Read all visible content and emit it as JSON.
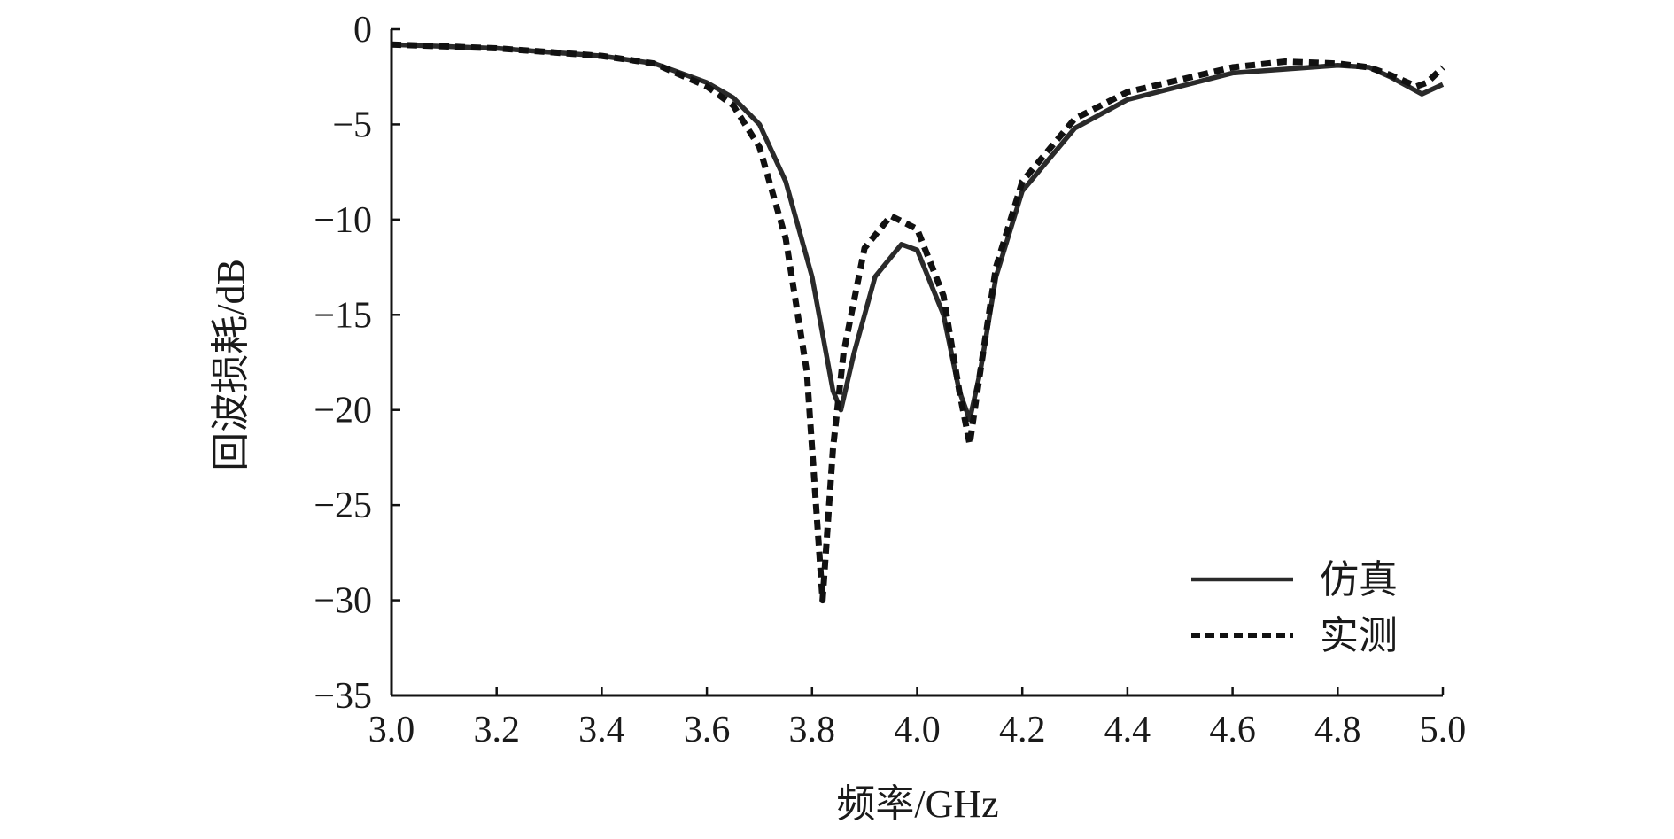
{
  "chart_data": {
    "type": "line",
    "title": "",
    "xlabel": "频率/GHz",
    "ylabel": "回波损耗/dB",
    "xlim": [
      3.0,
      5.0
    ],
    "ylim": [
      -35,
      0
    ],
    "xticks": [
      "3.0",
      "3.2",
      "3.4",
      "3.6",
      "3.8",
      "4.0",
      "4.2",
      "4.4",
      "4.6",
      "4.8",
      "5.0"
    ],
    "yticks": [
      "0",
      "−5",
      "−10",
      "−15",
      "−20",
      "−25",
      "−30",
      "−35"
    ],
    "grid": false,
    "legend_position": "bottom-right",
    "series": [
      {
        "name": "仿真",
        "style": "solid",
        "color": "#2a2a2a",
        "x": [
          3.0,
          3.2,
          3.4,
          3.5,
          3.6,
          3.65,
          3.7,
          3.75,
          3.8,
          3.84,
          3.855,
          3.88,
          3.92,
          3.97,
          4.0,
          4.05,
          4.08,
          4.1,
          4.12,
          4.15,
          4.2,
          4.3,
          4.4,
          4.6,
          4.8,
          4.86,
          4.9,
          4.96,
          5.0
        ],
        "y": [
          -0.8,
          -1.0,
          -1.4,
          -1.8,
          -2.8,
          -3.6,
          -5.0,
          -8.0,
          -13.0,
          -19.0,
          -20.0,
          -17.0,
          -13.0,
          -11.3,
          -11.6,
          -15.0,
          -19.0,
          -20.5,
          -18.0,
          -13.0,
          -8.5,
          -5.2,
          -3.7,
          -2.3,
          -1.9,
          -2.0,
          -2.5,
          -3.4,
          -2.9
        ]
      },
      {
        "name": "实测",
        "style": "dashed",
        "color": "#111111",
        "x": [
          3.0,
          3.2,
          3.4,
          3.5,
          3.6,
          3.65,
          3.7,
          3.75,
          3.79,
          3.82,
          3.84,
          3.86,
          3.9,
          3.95,
          4.0,
          4.05,
          4.08,
          4.1,
          4.12,
          4.15,
          4.2,
          4.3,
          4.4,
          4.6,
          4.7,
          4.8,
          4.86,
          4.9,
          4.95,
          4.97,
          5.0
        ],
        "y": [
          -0.8,
          -1.0,
          -1.4,
          -1.8,
          -3.0,
          -4.0,
          -6.2,
          -11.0,
          -18.0,
          -30.0,
          -22.0,
          -17.0,
          -11.5,
          -9.8,
          -10.5,
          -14.0,
          -19.0,
          -21.8,
          -18.0,
          -12.5,
          -8.0,
          -4.7,
          -3.3,
          -2.0,
          -1.7,
          -1.8,
          -2.0,
          -2.4,
          -3.0,
          -2.8,
          -2.0
        ]
      }
    ]
  }
}
